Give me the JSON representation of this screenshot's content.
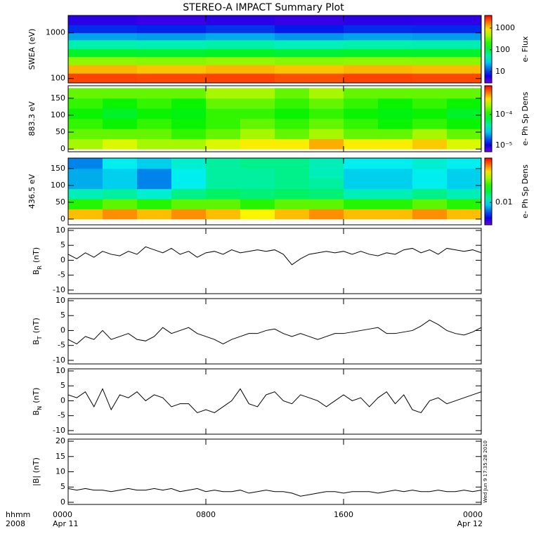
{
  "title": "STEREO-A IMPACT Summary Plot",
  "timestamp": "Wed Jun 9 17:35:28 2010",
  "x_axis": {
    "label_lines": [
      "hhmm",
      "2008"
    ],
    "xlim": [
      0,
      24
    ],
    "xticks": [
      {
        "value": 0,
        "label": "0000"
      },
      {
        "value": 8,
        "label": "0800"
      },
      {
        "value": 16,
        "label": "1600"
      },
      {
        "value": 24,
        "label": "0000"
      }
    ],
    "date_labels": [
      {
        "value": 0,
        "label": "Apr 11"
      },
      {
        "value": 24,
        "label": "Apr 12"
      }
    ]
  },
  "chart_data": [
    {
      "type": "heatmap",
      "ylabel": "SWEA (eV)",
      "ylog": true,
      "ylim": [
        80,
        2400
      ],
      "yticks": [
        100,
        1000
      ],
      "x_edges": [
        0,
        4,
        8,
        12,
        16,
        20,
        24
      ],
      "y_edges": [
        80,
        130,
        200,
        300,
        450,
        700,
        1000,
        1500,
        2400
      ],
      "z": [
        [
          2500,
          2400,
          2500,
          2300,
          2500,
          2400
        ],
        [
          1200,
          1100,
          1200,
          1100,
          1200,
          1150
        ],
        [
          400,
          380,
          420,
          380,
          400,
          390
        ],
        [
          120,
          115,
          125,
          110,
          120,
          118
        ],
        [
          50,
          48,
          52,
          46,
          50,
          49
        ],
        [
          20,
          19,
          21,
          18,
          20,
          19
        ],
        [
          9,
          8.5,
          9.5,
          8,
          9,
          8.8
        ],
        [
          5,
          4.5,
          5,
          4.5,
          5,
          4.8
        ]
      ],
      "colorbar": {
        "label": "e- Flux",
        "log": true,
        "clim": [
          3,
          3800
        ],
        "cticks": [
          10,
          100,
          1000
        ]
      }
    },
    {
      "type": "heatmap",
      "ylabel": "883.3 eV",
      "ylog": false,
      "ylim": [
        -8,
        187
      ],
      "yticks": [
        0,
        50,
        100,
        150
      ],
      "x_edges": [
        0,
        2,
        4,
        6,
        8,
        10,
        12,
        14,
        16,
        18,
        20,
        22,
        24
      ],
      "y_edges": [
        0,
        30,
        60,
        90,
        120,
        150,
        180
      ],
      "z": [
        [
          0.0002,
          0.00025,
          0.0002,
          0.0002,
          0.00025,
          0.0003,
          0.0003,
          0.0004,
          0.0003,
          0.0003,
          0.00035,
          0.00025
        ],
        [
          0.00015,
          0.00015,
          0.00015,
          0.00012,
          0.00015,
          0.0002,
          0.00015,
          0.0002,
          0.00015,
          0.00015,
          0.0002,
          0.00015
        ],
        [
          0.00012,
          0.0001,
          0.00012,
          0.0001,
          0.00012,
          0.00015,
          0.00012,
          0.00015,
          0.00012,
          0.0001,
          0.00012,
          0.0001
        ],
        [
          0.0001,
          8e-05,
          0.0001,
          9e-05,
          0.00012,
          0.00012,
          0.0001,
          0.00012,
          0.0001,
          9e-05,
          0.0001,
          8e-05
        ],
        [
          0.00012,
          0.0001,
          0.00012,
          0.0001,
          0.00015,
          0.00015,
          0.00012,
          0.00015,
          0.00012,
          0.0001,
          0.00012,
          0.0001
        ],
        [
          0.00015,
          0.00015,
          0.00015,
          0.00015,
          0.0002,
          0.0002,
          0.00015,
          0.0002,
          0.00015,
          0.00015,
          0.00015,
          0.00015
        ]
      ],
      "colorbar": {
        "label": "e- Ph Sp Dens",
        "log": true,
        "clim": [
          6.3e-06,
          0.00085
        ],
        "cticks": [
          {
            "value": 1e-05,
            "label": "10⁻⁵"
          },
          {
            "value": 0.0001,
            "label": "10⁻⁴"
          }
        ]
      }
    },
    {
      "type": "heatmap",
      "ylabel": "436.5 eV",
      "ylog": false,
      "ylim": [
        -17,
        181
      ],
      "yticks": [
        0,
        50,
        100,
        150
      ],
      "x_edges": [
        0,
        2,
        4,
        6,
        8,
        10,
        12,
        14,
        16,
        18,
        20,
        22,
        24
      ],
      "y_edges": [
        0,
        30,
        60,
        90,
        120,
        150,
        180
      ],
      "z": [
        [
          0.06,
          0.07,
          0.06,
          0.07,
          0.06,
          0.05,
          0.06,
          0.07,
          0.06,
          0.06,
          0.07,
          0.06
        ],
        [
          0.025,
          0.03,
          0.025,
          0.03,
          0.03,
          0.025,
          0.03,
          0.03,
          0.025,
          0.025,
          0.03,
          0.025
        ],
        [
          0.012,
          0.013,
          0.011,
          0.014,
          0.016,
          0.015,
          0.016,
          0.015,
          0.012,
          0.012,
          0.014,
          0.012
        ],
        [
          0.008,
          0.009,
          0.007,
          0.01,
          0.013,
          0.013,
          0.014,
          0.013,
          0.009,
          0.009,
          0.01,
          0.009
        ],
        [
          0.008,
          0.009,
          0.007,
          0.01,
          0.013,
          0.013,
          0.014,
          0.012,
          0.009,
          0.009,
          0.01,
          0.009
        ],
        [
          0.007,
          0.01,
          0.009,
          0.011,
          0.013,
          0.014,
          0.014,
          0.012,
          0.01,
          0.01,
          0.011,
          0.01
        ]
      ],
      "colorbar": {
        "label": "e- Ph Sp Dens",
        "log": true,
        "clim": [
          0.003,
          0.11
        ],
        "cticks": [
          0.01
        ]
      }
    },
    {
      "type": "line",
      "ylabel": {
        "text": "B",
        "sub": "R",
        "unit": "(nT)"
      },
      "ylim": [
        -11.2,
        10.7
      ],
      "yticks": [
        -10,
        -5,
        0,
        5,
        10
      ],
      "color": "#000000",
      "x": [
        0,
        0.5,
        1,
        1.5,
        2,
        2.5,
        3,
        3.5,
        4,
        4.5,
        5,
        5.5,
        6,
        6.5,
        7,
        7.5,
        8,
        8.5,
        9,
        9.5,
        10,
        10.5,
        11,
        11.5,
        12,
        12.5,
        13,
        13.5,
        14,
        14.5,
        15,
        15.5,
        16,
        16.5,
        17,
        17.5,
        18,
        18.5,
        19,
        19.5,
        20,
        20.5,
        21,
        21.5,
        22,
        22.5,
        23,
        23.5,
        24
      ],
      "values": [
        2,
        0.5,
        2.5,
        1,
        3,
        2,
        1.5,
        3,
        2,
        4.5,
        3.5,
        2.5,
        4,
        2,
        3,
        1,
        2.5,
        3,
        2,
        3.5,
        2.5,
        3,
        3.5,
        3,
        3.5,
        2,
        -1.5,
        0.5,
        2,
        2.5,
        3,
        2.5,
        3,
        2,
        3,
        2,
        1.5,
        2.5,
        2,
        3.5,
        4,
        2.5,
        3.5,
        2,
        4,
        3.5,
        3,
        3.5,
        2.5
      ]
    },
    {
      "type": "line",
      "ylabel": {
        "text": "B",
        "sub": "T",
        "unit": "(nT)"
      },
      "ylim": [
        -11.2,
        10.7
      ],
      "yticks": [
        -10,
        -5,
        0,
        5,
        10
      ],
      "color": "#000000",
      "x": [
        0,
        0.5,
        1,
        1.5,
        2,
        2.5,
        3,
        3.5,
        4,
        4.5,
        5,
        5.5,
        6,
        6.5,
        7,
        7.5,
        8,
        8.5,
        9,
        9.5,
        10,
        10.5,
        11,
        11.5,
        12,
        12.5,
        13,
        13.5,
        14,
        14.5,
        15,
        15.5,
        16,
        16.5,
        17,
        17.5,
        18,
        18.5,
        19,
        19.5,
        20,
        20.5,
        21,
        21.5,
        22,
        22.5,
        23,
        23.5,
        24
      ],
      "values": [
        -3,
        -4.5,
        -2,
        -3,
        0,
        -3,
        -2,
        -1,
        -3,
        -3.5,
        -2,
        1,
        -1,
        0,
        1,
        -1,
        -2,
        -3,
        -4.5,
        -3,
        -2,
        -1,
        -1,
        0,
        0.5,
        -1,
        -2,
        -1,
        -2,
        -3,
        -2,
        -1,
        -1,
        -0.5,
        0,
        0.5,
        1,
        -1,
        -1,
        -0.5,
        0,
        1.5,
        3.5,
        2,
        0,
        -1,
        -1.5,
        -0.5,
        1
      ]
    },
    {
      "type": "line",
      "ylabel": {
        "text": "B",
        "sub": "N",
        "unit": "(nT)"
      },
      "ylim": [
        -11.2,
        10.7
      ],
      "yticks": [
        -10,
        -5,
        0,
        5,
        10
      ],
      "color": "#000000",
      "x": [
        0,
        0.5,
        1,
        1.5,
        2,
        2.5,
        3,
        3.5,
        4,
        4.5,
        5,
        5.5,
        6,
        6.5,
        7,
        7.5,
        8,
        8.5,
        9,
        9.5,
        10,
        10.5,
        11,
        11.5,
        12,
        12.5,
        13,
        13.5,
        14,
        14.5,
        15,
        15.5,
        16,
        16.5,
        17,
        17.5,
        18,
        18.5,
        19,
        19.5,
        20,
        20.5,
        21,
        21.5,
        22,
        22.5,
        23,
        23.5,
        24
      ],
      "values": [
        2,
        1,
        3,
        -2,
        4,
        -3,
        2,
        1,
        3,
        0,
        2,
        1,
        -2,
        -1,
        -1,
        -4,
        -3,
        -4,
        -2,
        0,
        4,
        -1,
        -2,
        2,
        3,
        0,
        -1,
        2,
        1,
        0,
        -2,
        0,
        2,
        0,
        1,
        -2,
        1,
        3,
        -1,
        2,
        -3,
        -4,
        0,
        1,
        -1,
        0,
        1,
        2,
        3
      ]
    },
    {
      "type": "line",
      "ylabel": "|B| (nT)",
      "ylim": [
        -0.7,
        20.7
      ],
      "yticks": [
        0,
        5,
        10,
        15,
        20
      ],
      "color": "#000000",
      "x": [
        0,
        0.5,
        1,
        1.5,
        2,
        2.5,
        3,
        3.5,
        4,
        4.5,
        5,
        5.5,
        6,
        6.5,
        7,
        7.5,
        8,
        8.5,
        9,
        9.5,
        10,
        10.5,
        11,
        11.5,
        12,
        12.5,
        13,
        13.5,
        14,
        14.5,
        15,
        15.5,
        16,
        16.5,
        17,
        17.5,
        18,
        18.5,
        19,
        19.5,
        20,
        20.5,
        21,
        21.5,
        22,
        22.5,
        23,
        23.5,
        24
      ],
      "values": [
        4.5,
        4,
        4.5,
        4,
        4,
        3.5,
        4,
        4.5,
        4,
        4,
        4.5,
        4,
        4.5,
        3.5,
        4,
        4.5,
        3.5,
        4,
        3.5,
        3.5,
        4,
        3,
        3.5,
        4,
        3.5,
        3.5,
        3,
        2,
        2.5,
        3,
        3.5,
        3.5,
        3,
        3.5,
        3.5,
        3.5,
        3,
        3.5,
        4,
        3.5,
        4,
        3.5,
        3.5,
        4,
        3.5,
        3.5,
        4,
        3.5,
        4
      ]
    }
  ]
}
